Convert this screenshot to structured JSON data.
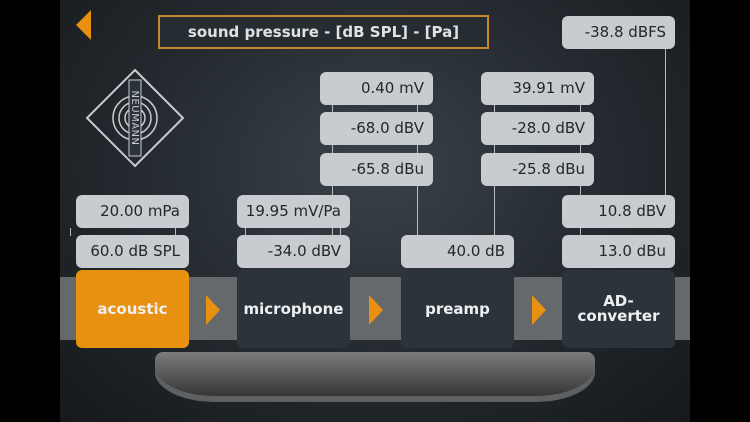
{
  "header": {
    "title": "sound pressure - [dB SPL] - [Pa]",
    "back_icon": "back-arrow-icon"
  },
  "logo": {
    "text": "NEUMANN"
  },
  "colors": {
    "accent": "#e8900f",
    "stage": "#2b343b",
    "value_box": "#c8cbcf"
  },
  "acoustic": {
    "pressure": "20.00 mPa",
    "spl": "60.0 dB SPL"
  },
  "microphone": {
    "sensitivity": "19.95 mV/Pa",
    "level": "-34.0 dBV"
  },
  "mic_output": {
    "mv": "0.40 mV",
    "dbv": "-68.0 dBV",
    "dbu": "-65.8 dBu"
  },
  "preamp": {
    "gain": "40.0 dB"
  },
  "preamp_output": {
    "mv": "39.91 mV",
    "dbv": "-28.0 dBV",
    "dbu": "-25.8 dBu"
  },
  "ad_converter": {
    "dbfs": "-38.8 dBFS",
    "dbv": "10.8 dBV",
    "dbu": "13.0 dBu"
  },
  "stages": [
    {
      "label": "acoustic",
      "active": true
    },
    {
      "label": "microphone"
    },
    {
      "label": "preamp"
    },
    {
      "label": "AD-\nconverter"
    }
  ]
}
